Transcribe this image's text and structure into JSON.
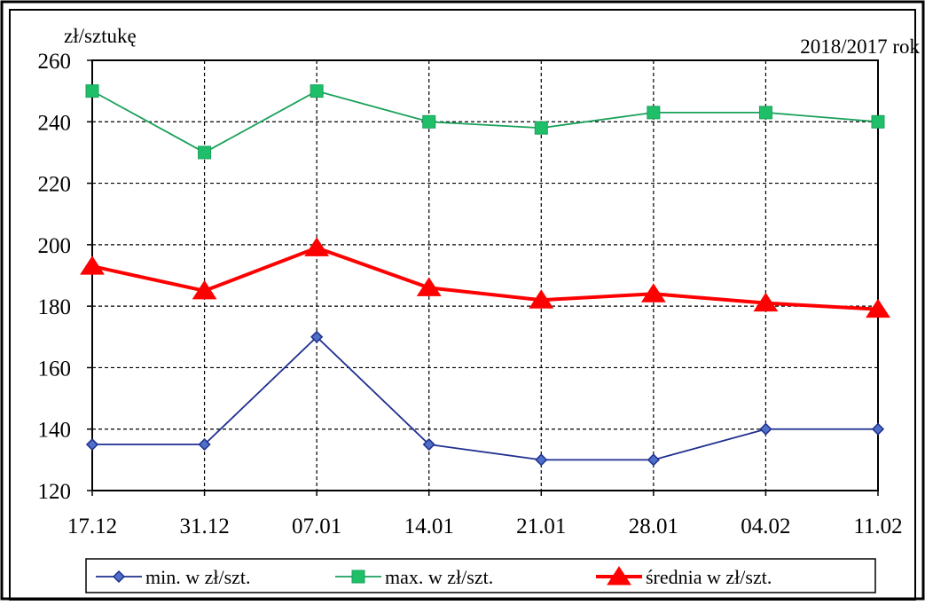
{
  "chart_data": {
    "type": "line",
    "unit_label": "zł/sztukę",
    "period_label": "2018/2017 rok",
    "categories": [
      "17.12",
      "31.12",
      "07.01",
      "14.01",
      "21.01",
      "28.01",
      "04.02",
      "11.02"
    ],
    "ylim": [
      120,
      260
    ],
    "yticks": [
      120,
      140,
      160,
      180,
      200,
      220,
      240,
      260
    ],
    "grid": true,
    "legend_position": "bottom",
    "series": [
      {
        "name": "min. w zł/szt.",
        "values": [
          135,
          135,
          170,
          135,
          130,
          130,
          140,
          140
        ],
        "color": "#1f2f8f",
        "marker": "diamond",
        "marker_fill": "#4f6fc8"
      },
      {
        "name": "max. w zł/szt.",
        "values": [
          250,
          230,
          250,
          240,
          238,
          243,
          243,
          240
        ],
        "color": "#1aa05a",
        "marker": "square",
        "marker_fill": "#1fbf6a"
      },
      {
        "name": "średnia w zł/szt.",
        "values": [
          193,
          185,
          199,
          186,
          182,
          184,
          181,
          179
        ],
        "color": "#ff0000",
        "marker": "triangle",
        "marker_fill": "#ff0000"
      }
    ]
  }
}
